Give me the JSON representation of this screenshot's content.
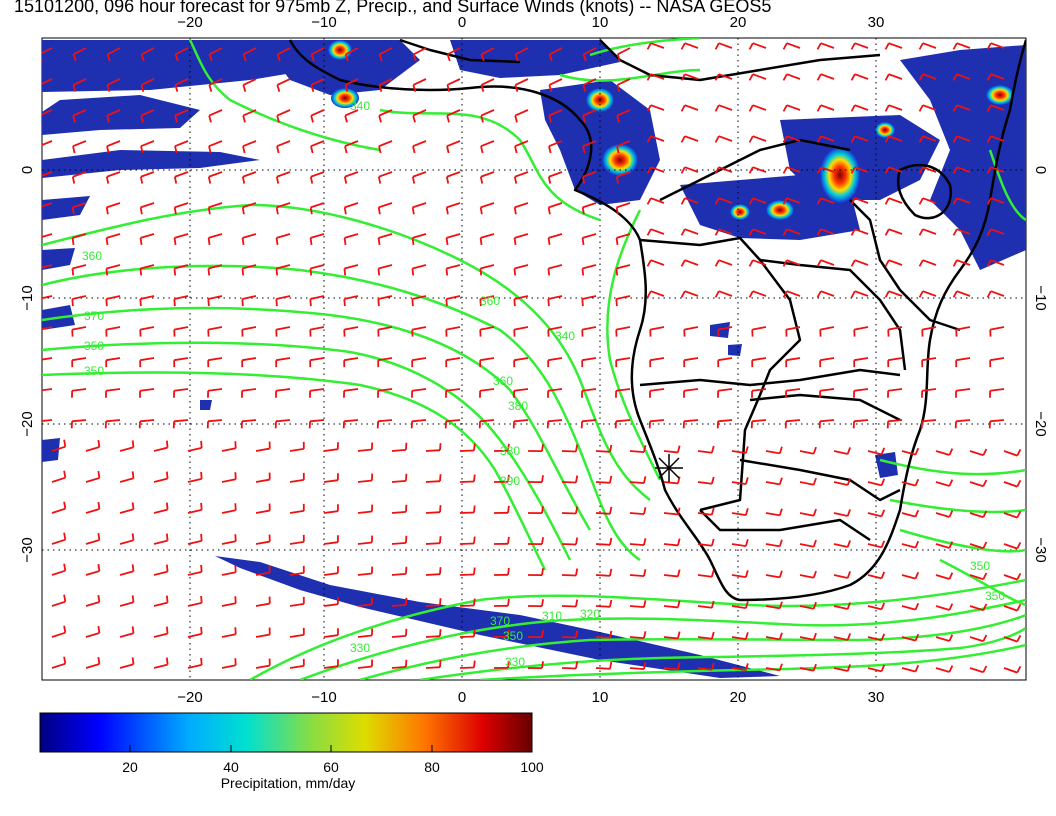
{
  "title": "15101200, 096 hour forecast for 975mb Z, Precip., and Surface Winds (knots) -- NASA GEOS5",
  "lon_labels": [
    "−20",
    "−10",
    "0",
    "10",
    "20",
    "30"
  ],
  "lat_labels": [
    "0",
    "−10",
    "−20",
    "−30"
  ],
  "contour_labels": [
    "340",
    "360",
    "370",
    "350",
    "350",
    "360",
    "340",
    "380",
    "390",
    "360",
    "380",
    "370",
    "350",
    "330",
    "310",
    "350",
    "350",
    "330",
    "320"
  ],
  "colorbar": {
    "ticks": [
      "20",
      "40",
      "60",
      "80",
      "100"
    ],
    "label": "Precipitation, mm/day"
  },
  "colors": {
    "contour": "#33ee33",
    "wind": "#ee1111",
    "boundary": "#000000"
  }
}
